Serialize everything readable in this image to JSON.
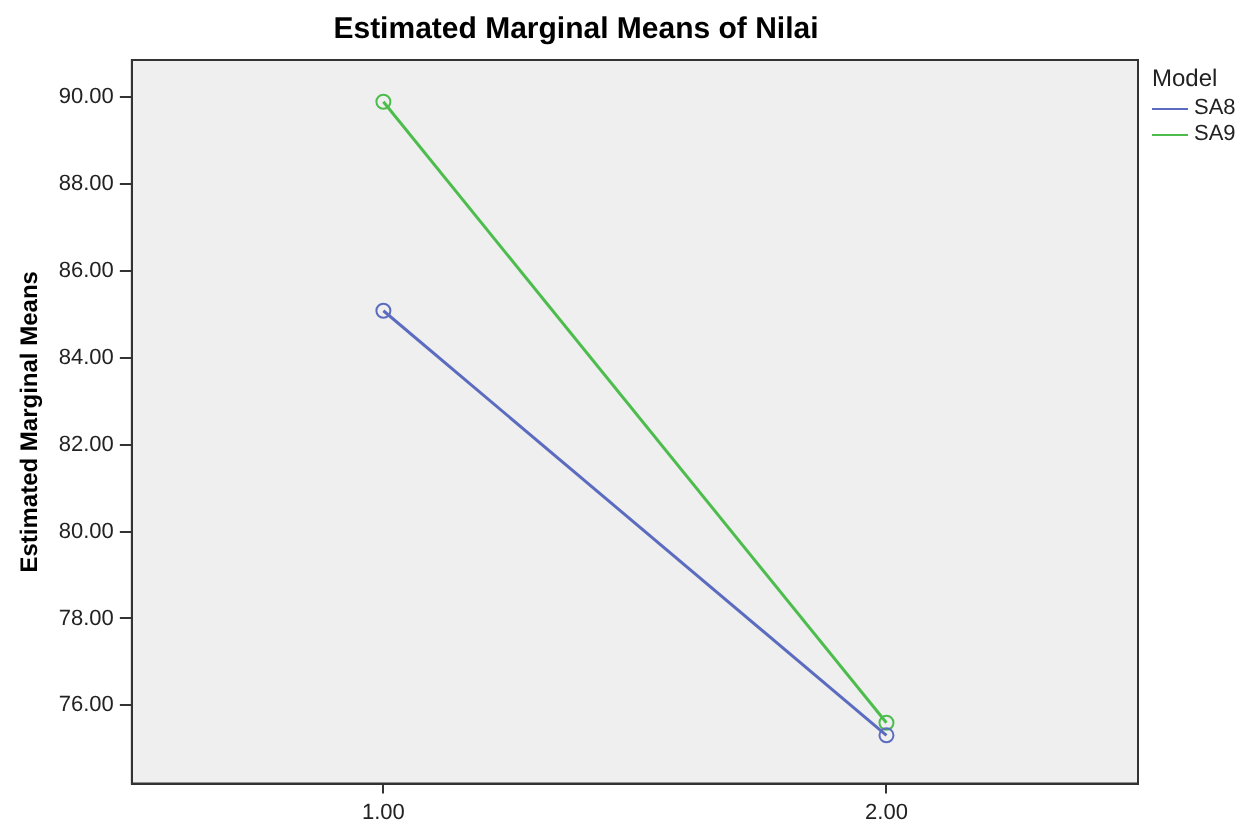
{
  "chart_data": {
    "type": "line",
    "title": "Estimated Marginal Means of Nilai",
    "ylabel": "Estimated Marginal Means",
    "legend_title": "Model",
    "legend": "right",
    "marker": "circle",
    "line_style": "solid",
    "grid": false,
    "categories": [
      "1.00",
      "2.00"
    ],
    "series": [
      {
        "name": "SA8",
        "color": "#5b6bbf",
        "values": [
          85.08,
          75.31
        ]
      },
      {
        "name": "SA9",
        "color": "#4cbd4c",
        "values": [
          89.89,
          75.6
        ]
      }
    ],
    "ylim": [
      74.2,
      90.85
    ],
    "yticks": [
      {
        "value": 76,
        "label": "76.00"
      },
      {
        "value": 78,
        "label": "78.00"
      },
      {
        "value": 80,
        "label": "80.00"
      },
      {
        "value": 82,
        "label": "82.00"
      },
      {
        "value": 84,
        "label": "84.00"
      },
      {
        "value": 86,
        "label": "86.00"
      },
      {
        "value": 88,
        "label": "88.00"
      },
      {
        "value": 90,
        "label": "90.00"
      }
    ]
  }
}
